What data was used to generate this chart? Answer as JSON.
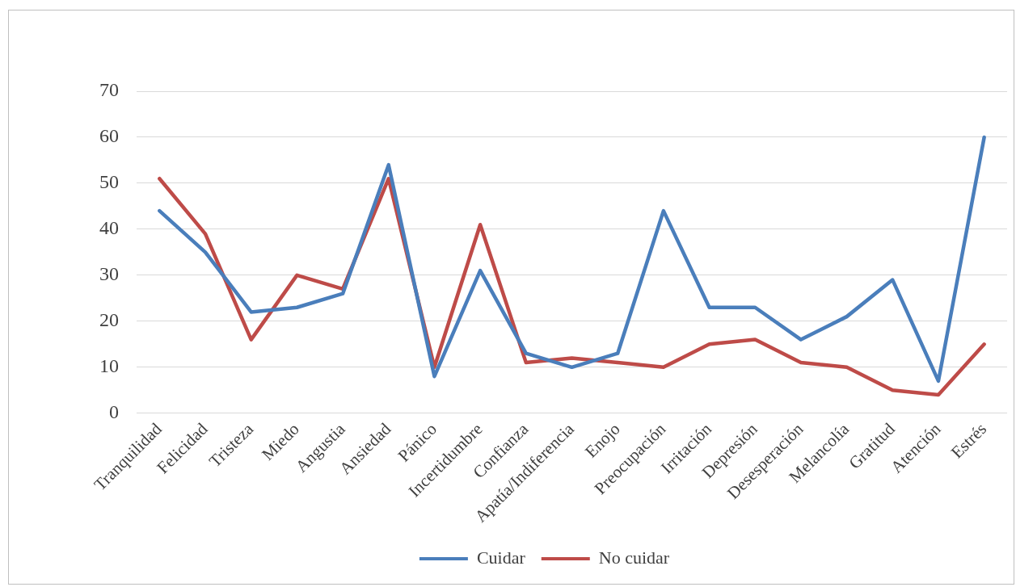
{
  "chart_data": {
    "type": "line",
    "categories": [
      "Tranquilidad",
      "Felicidad",
      "Tristeza",
      "Miedo",
      "Angustia",
      "Ansiedad",
      "Pánico",
      "Incertidumbre",
      "Confianza",
      "Apatía/Indiferencia",
      "Enojo",
      "Preocupación",
      "Irritación",
      "Depresión",
      "Desesperación",
      "Melancolía",
      "Gratitud",
      "Atención",
      "Estrés"
    ],
    "series": [
      {
        "name": "Cuidar",
        "color": "#4a7ebb",
        "values": [
          44,
          35,
          22,
          23,
          26,
          54,
          8,
          31,
          13,
          10,
          13,
          44,
          23,
          23,
          16,
          21,
          29,
          7,
          60
        ]
      },
      {
        "name": "No cuidar",
        "color": "#be4b48",
        "values": [
          51,
          39,
          16,
          30,
          27,
          51,
          10,
          41,
          11,
          12,
          11,
          10,
          15,
          16,
          11,
          10,
          5,
          4,
          15
        ]
      }
    ],
    "ylim": [
      0,
      70
    ],
    "yticks": [
      0,
      10,
      20,
      30,
      40,
      50,
      60,
      70
    ],
    "grid": "y",
    "legend": "bottom",
    "marker": "none",
    "line_style": "solid"
  }
}
